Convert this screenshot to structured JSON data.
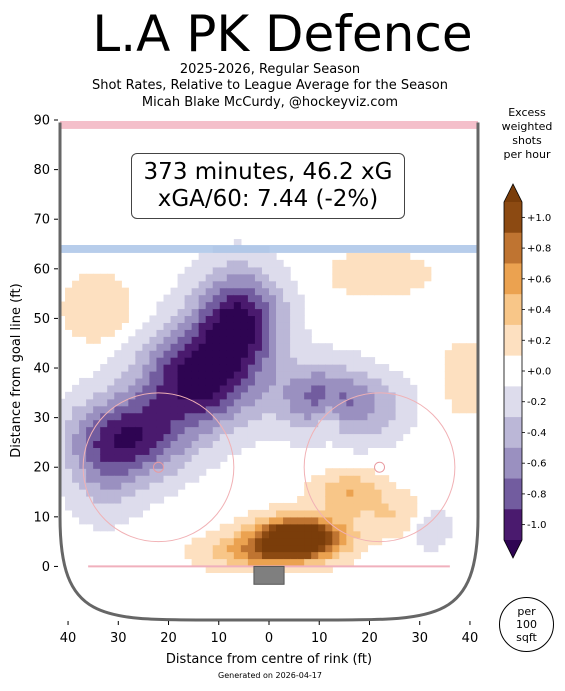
{
  "title": "L.A PK Defence",
  "subtitle_lines": [
    "2025-2026, Regular Season",
    "Shot Rates, Relative to League Average for the Season",
    "Micah Blake McCurdy, @hockeyviz.com"
  ],
  "stats_box": {
    "line1": "373 minutes, 46.2 xG",
    "line2": "xGA/60: 7.44 (-2%)"
  },
  "footer": "Generated on 2026-04-17",
  "colorbar": {
    "title_lines": [
      "Excess",
      "weighted",
      "shots",
      "per hour"
    ],
    "levels": [
      {
        "label": "+1.0",
        "color": "#8c4a12"
      },
      {
        "label": "+0.8",
        "color": "#bf7431"
      },
      {
        "label": "+0.6",
        "color": "#eba250"
      },
      {
        "label": "+0.4",
        "color": "#f8c688"
      },
      {
        "label": "+0.2",
        "color": "#fde0c0"
      },
      {
        "label": "+0.0",
        "color": "#ffffff"
      },
      {
        "label": "-0.2",
        "color": "#dddcec"
      },
      {
        "label": "-0.4",
        "color": "#bbb7d7"
      },
      {
        "label": "-0.6",
        "color": "#9a90c0"
      },
      {
        "label": "-0.8",
        "color": "#725c9f"
      },
      {
        "label": "-1.0",
        "color": "#4a1a6e"
      }
    ],
    "over_color": "#7a3d0a",
    "under_color": "#2e0452"
  },
  "per_area_lines": [
    "per",
    "100",
    "sqft"
  ],
  "chart_data": {
    "type": "heatmap",
    "title": "L.A PK Defence",
    "xlabel": "Distance from centre of rink (ft)",
    "ylabel": "Distance from goal line (ft)",
    "x_tick_labels": [
      "40",
      "30",
      "20",
      "10",
      "0",
      "10",
      "20",
      "30",
      "40"
    ],
    "x_ticks": [
      -40,
      -30,
      -20,
      -10,
      0,
      10,
      20,
      30,
      40
    ],
    "y_ticks": [
      0,
      10,
      20,
      30,
      40,
      50,
      60,
      70,
      80,
      90
    ],
    "xlim": [
      -42,
      42
    ],
    "ylim": [
      -11,
      90
    ],
    "grid": false,
    "rink": {
      "goal_line_y": 0,
      "blue_line_y": 64,
      "red_line_y": 89,
      "faceoff_dots": [
        [
          -22,
          20
        ],
        [
          22,
          20
        ]
      ],
      "faceoff_circle_radius": 15
    },
    "hotspots": [
      {
        "x": 6,
        "y": 6,
        "value": 1.6,
        "sx": 6,
        "sy": 2.8
      },
      {
        "x": -2,
        "y": 3,
        "value": 0.6,
        "sx": 8,
        "sy": 2.5
      },
      {
        "x": 16,
        "y": 15,
        "value": 0.5,
        "sx": 5,
        "sy": 3
      },
      {
        "x": 12,
        "y": 30,
        "value": 0.35,
        "sx": 2,
        "sy": 3
      },
      {
        "x": 26,
        "y": 10,
        "value": 0.3,
        "sx": 5,
        "sy": 3
      },
      {
        "x": -34,
        "y": 52,
        "value": 0.3,
        "sx": 5,
        "sy": 5
      },
      {
        "x": 22,
        "y": 59,
        "value": 0.3,
        "sx": 7,
        "sy": 3
      },
      {
        "x": 39,
        "y": 38,
        "value": 0.3,
        "sx": 3,
        "sy": 5
      },
      {
        "x": -28,
        "y": 26,
        "value": -1.0,
        "sx": 8,
        "sy": 6
      },
      {
        "x": -6,
        "y": 50,
        "value": -1.1,
        "sx": 6,
        "sy": 7
      },
      {
        "x": -14,
        "y": 38,
        "value": -1.2,
        "sx": 8,
        "sy": 7
      },
      {
        "x": 10,
        "y": 34,
        "value": -0.7,
        "sx": 6,
        "sy": 5
      },
      {
        "x": 20,
        "y": 32,
        "value": -0.4,
        "sx": 6,
        "sy": 5
      },
      {
        "x": -33,
        "y": 18,
        "value": -0.3,
        "sx": 5,
        "sy": 7
      },
      {
        "x": 32,
        "y": 8,
        "value": -0.35,
        "sx": 3,
        "sy": 3
      }
    ]
  }
}
